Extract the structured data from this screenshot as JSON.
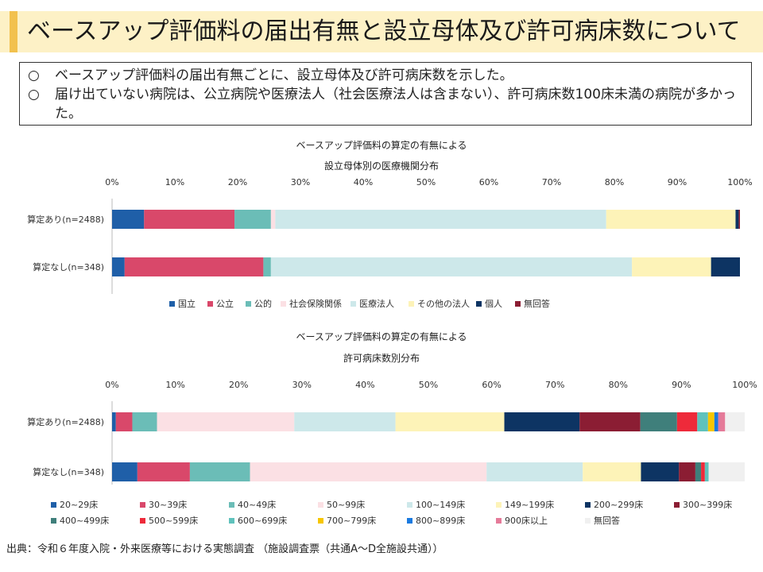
{
  "slide_title": "ベースアップ評価料の届出有無と設立母体及び許可病床数について",
  "summary": [
    {
      "mark": "○",
      "text": "ベースアップ評価料の届出有無ごとに、設立母体及び許可病床数を示した。"
    },
    {
      "mark": "○",
      "text": "届け出ていない病院は、公立病院や医療法人（社会医療法人は含まない）、許可病床数100床未満の病院が多かった。"
    }
  ],
  "source": "出典：令和６年度入院・外来医療等における実態調査 （施設調査票（共通A～D全施設共通））",
  "chart_data": [
    {
      "type": "bar",
      "orientation": "horizontal",
      "stacked": "percent",
      "title_line1": "ベースアップ評価料の算定の有無による",
      "title_line2": "設立母体別の医療機関分布",
      "xlim": [
        0,
        100
      ],
      "ticks": [
        "0%",
        "10%",
        "20%",
        "30%",
        "40%",
        "50%",
        "60%",
        "70%",
        "80%",
        "90%",
        "100%"
      ],
      "categories": [
        "算定あり(n=2488)",
        "算定なし(n=348)"
      ],
      "legend_position": "bottom",
      "series": [
        {
          "name": "国立",
          "color": "#1f5fa8",
          "values": [
            5.1,
            2.0
          ]
        },
        {
          "name": "公立",
          "color": "#d9486a",
          "values": [
            14.4,
            22.1
          ]
        },
        {
          "name": "公的",
          "color": "#6bbdb7",
          "values": [
            5.8,
            1.2
          ]
        },
        {
          "name": "社会保険関係",
          "color": "#fbe0e4",
          "values": [
            0.7,
            0.0
          ]
        },
        {
          "name": "医療法人",
          "color": "#cde8ea",
          "values": [
            52.7,
            57.5
          ]
        },
        {
          "name": "その他の法人",
          "color": "#fdf3b8",
          "values": [
            20.6,
            12.6
          ]
        },
        {
          "name": "個人",
          "color": "#0d3463",
          "values": [
            0.5,
            4.6
          ]
        },
        {
          "name": "無回答",
          "color": "#8b1d33",
          "values": [
            0.2,
            0.0
          ]
        }
      ]
    },
    {
      "type": "bar",
      "orientation": "horizontal",
      "stacked": "percent",
      "title_line1": "ベースアップ評価料の算定の有無による",
      "title_line2": "許可病床数別分布",
      "xlim": [
        0,
        100
      ],
      "ticks": [
        "0%",
        "10%",
        "20%",
        "30%",
        "40%",
        "50%",
        "60%",
        "70%",
        "80%",
        "90%",
        "100%"
      ],
      "categories": [
        "算定あり(n=2488)",
        "算定なし(n=348)"
      ],
      "legend_position": "bottom",
      "series": [
        {
          "name": "20~29床",
          "color": "#1f5fa8",
          "values": [
            0.6,
            4.0
          ]
        },
        {
          "name": "30~39床",
          "color": "#d9486a",
          "values": [
            2.6,
            8.3
          ]
        },
        {
          "name": "40~49床",
          "color": "#6bbdb7",
          "values": [
            3.9,
            9.5
          ]
        },
        {
          "name": "50~99床",
          "color": "#fbe0e4",
          "values": [
            21.7,
            37.4
          ]
        },
        {
          "name": "100~149床",
          "color": "#cde8ea",
          "values": [
            16.0,
            15.2
          ]
        },
        {
          "name": "149~199床",
          "color": "#fdf3b8",
          "values": [
            17.2,
            9.2
          ]
        },
        {
          "name": "200~299床",
          "color": "#0d3463",
          "values": [
            11.9,
            6.0
          ]
        },
        {
          "name": "300~399床",
          "color": "#8b1d33",
          "values": [
            9.6,
            2.6
          ]
        },
        {
          "name": "400~499床",
          "color": "#3f7f7b",
          "values": [
            5.8,
            0.9
          ]
        },
        {
          "name": "500~599床",
          "color": "#ee2a3a",
          "values": [
            3.2,
            0.6
          ]
        },
        {
          "name": "600~699床",
          "color": "#5fc2bc",
          "values": [
            1.7,
            0.6
          ]
        },
        {
          "name": "700~799床",
          "color": "#f7c600",
          "values": [
            1.0,
            0.0
          ]
        },
        {
          "name": "800~899床",
          "color": "#1a7ae0",
          "values": [
            0.6,
            0.0
          ]
        },
        {
          "name": "900床以上",
          "color": "#e57a99",
          "values": [
            1.1,
            0.0
          ]
        },
        {
          "name": "無回答",
          "color": "#f0f0f0",
          "values": [
            3.1,
            5.7
          ]
        }
      ]
    }
  ]
}
